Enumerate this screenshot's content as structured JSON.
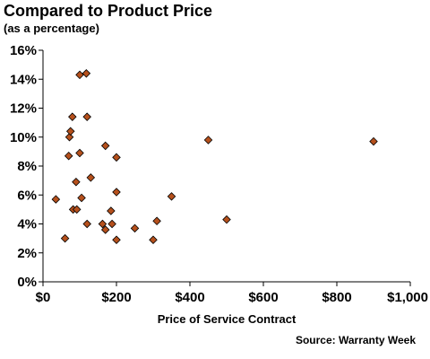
{
  "chart_data": {
    "type": "scatter",
    "title": "Compared to Product Price",
    "subtitle": "(as a percentage)",
    "xlabel": "Price of Service Contract",
    "ylabel": "",
    "source": "Source: Warranty Week",
    "xlim": [
      0,
      1000
    ],
    "ylim": [
      0,
      16
    ],
    "xticks": [
      0,
      200,
      400,
      600,
      800,
      1000
    ],
    "xtick_labels": [
      "$0",
      "$200",
      "$400",
      "$600",
      "$800",
      "$1,000"
    ],
    "yticks": [
      0,
      2,
      4,
      6,
      8,
      10,
      12,
      14,
      16
    ],
    "ytick_labels": [
      "0%",
      "2%",
      "4%",
      "6%",
      "8%",
      "10%",
      "12%",
      "14%",
      "16%"
    ],
    "grid": false,
    "marker_color": "#b5501c",
    "marker_edge": "#000000",
    "points": [
      {
        "x": 35,
        "y": 5.7
      },
      {
        "x": 60,
        "y": 3.0
      },
      {
        "x": 70,
        "y": 8.7
      },
      {
        "x": 72,
        "y": 10.0
      },
      {
        "x": 75,
        "y": 10.4
      },
      {
        "x": 80,
        "y": 11.4
      },
      {
        "x": 82,
        "y": 5.0
      },
      {
        "x": 90,
        "y": 6.9
      },
      {
        "x": 92,
        "y": 5.0
      },
      {
        "x": 100,
        "y": 14.3
      },
      {
        "x": 100,
        "y": 8.9
      },
      {
        "x": 105,
        "y": 5.8
      },
      {
        "x": 118,
        "y": 14.4
      },
      {
        "x": 120,
        "y": 11.4
      },
      {
        "x": 120,
        "y": 4.0
      },
      {
        "x": 130,
        "y": 7.2
      },
      {
        "x": 162,
        "y": 4.0
      },
      {
        "x": 170,
        "y": 9.4
      },
      {
        "x": 170,
        "y": 3.6
      },
      {
        "x": 185,
        "y": 4.9
      },
      {
        "x": 188,
        "y": 4.0
      },
      {
        "x": 200,
        "y": 8.6
      },
      {
        "x": 200,
        "y": 6.2
      },
      {
        "x": 200,
        "y": 2.9
      },
      {
        "x": 250,
        "y": 3.7
      },
      {
        "x": 300,
        "y": 2.9
      },
      {
        "x": 310,
        "y": 4.2
      },
      {
        "x": 350,
        "y": 5.9
      },
      {
        "x": 450,
        "y": 9.8
      },
      {
        "x": 500,
        "y": 4.3
      },
      {
        "x": 900,
        "y": 9.7
      }
    ]
  }
}
